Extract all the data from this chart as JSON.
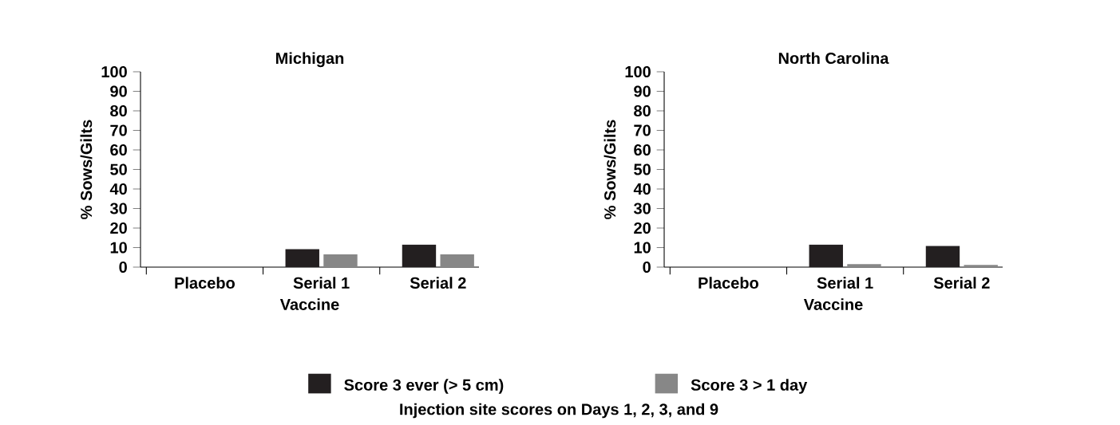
{
  "chart_data": [
    {
      "type": "bar",
      "title": "Michigan",
      "categories": [
        "Placebo",
        "Serial 1",
        "Serial 2"
      ],
      "xlabel": "Vaccine",
      "ylabel": "% Sows/Gilts",
      "ylim": [
        0,
        100
      ],
      "yticks": [
        0,
        10,
        20,
        30,
        40,
        50,
        60,
        70,
        80,
        90,
        100
      ],
      "legend": "bottom",
      "grid": false,
      "series": [
        {
          "name": "Score 3 ever (> 5 cm)",
          "color": "#231f20",
          "values": [
            0,
            9.2,
            11.5
          ]
        },
        {
          "name": "Score 3 > 1 day",
          "color": "#878787",
          "values": [
            0,
            6.5,
            6.5
          ]
        }
      ],
      "annotations": [
        "Injection site scores on Days 1, 2, 3, and 9"
      ]
    },
    {
      "type": "bar",
      "title": "North Carolina",
      "categories": [
        "Placebo",
        "Serial 1",
        "Serial 2"
      ],
      "xlabel": "Vaccine",
      "ylabel": "% Sows/Gilts",
      "ylim": [
        0,
        100
      ],
      "yticks": [
        0,
        10,
        20,
        30,
        40,
        50,
        60,
        70,
        80,
        90,
        100
      ],
      "grid": false,
      "series": [
        {
          "color": "#231f20",
          "values": [
            0,
            11.5,
            10.8
          ]
        },
        {
          "color": "#878787",
          "values": [
            0,
            1.5,
            1.1
          ]
        }
      ]
    }
  ]
}
